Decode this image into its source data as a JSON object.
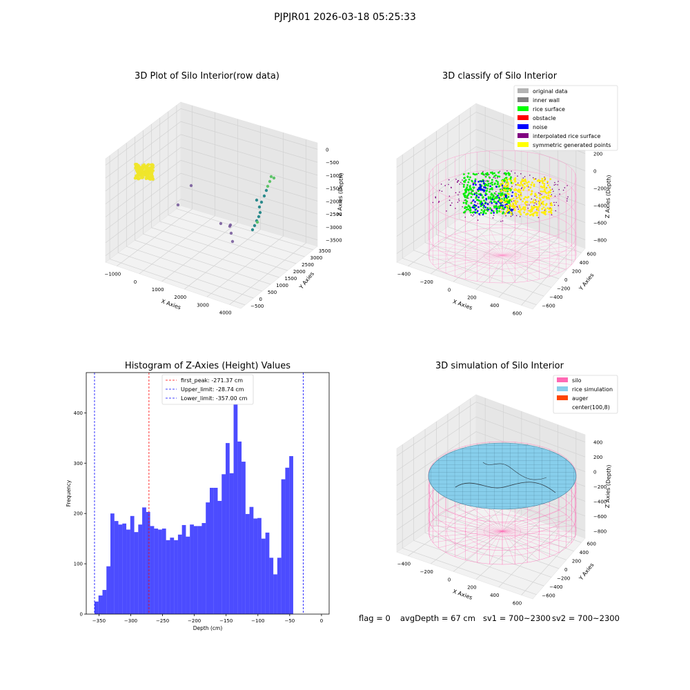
{
  "header": {
    "title": "PJPJR01 2026-03-18 05:25:33"
  },
  "panels": {
    "raw": {
      "title": "3D Plot of Silo Interior(row data)",
      "xlabel": "X Axies",
      "ylabel": "Y Axies",
      "zlabel": "Z Axies (Depth)",
      "xticks": [
        "−1000",
        "0",
        "1000",
        "2000",
        "3000",
        "4000"
      ],
      "yticks": [
        "−500",
        "0",
        "500",
        "1000",
        "1500",
        "2000",
        "2500",
        "3000",
        "3500"
      ],
      "zticks": [
        "0",
        "−500",
        "−1000",
        "−1500",
        "−2000",
        "−2500",
        "−3000",
        "−3500"
      ]
    },
    "classify": {
      "title": "3D classify of Silo Interior",
      "xlabel": "X Axies",
      "ylabel": "Y Axies",
      "zlabel": "Z Axies (Depth)",
      "xticks": [
        "−400",
        "−200",
        "0",
        "200",
        "400",
        "600"
      ],
      "yticks": [
        "−600",
        "−400",
        "−200",
        "0",
        "200",
        "400",
        "600"
      ],
      "zticks": [
        "200",
        "0",
        "−200",
        "−400",
        "−600",
        "−800"
      ],
      "legend": [
        {
          "label": "original data",
          "color": "#b3b3b3"
        },
        {
          "label": "inner wall",
          "color": "#808080"
        },
        {
          "label": "rice surface",
          "color": "#00ff00"
        },
        {
          "label": "obstacle",
          "color": "#ff0000"
        },
        {
          "label": "noise",
          "color": "#0000ff"
        },
        {
          "label": "interpolated rice surface",
          "color": "#800080"
        },
        {
          "label": "symmetric generated points",
          "color": "#ffff00"
        }
      ]
    },
    "simulation": {
      "title": "3D simulation of Silo Interior",
      "xlabel": "X Axies",
      "ylabel": "Y Axies",
      "zlabel": "Z Axies (Depth)",
      "xticks": [
        "−400",
        "−200",
        "0",
        "200",
        "400",
        "600"
      ],
      "yticks": [
        "−600",
        "−400",
        "−200",
        "0",
        "200",
        "400",
        "600"
      ],
      "zticks": [
        "400",
        "200",
        "0",
        "−200",
        "−400",
        "−600",
        "−800"
      ],
      "legend": [
        {
          "label": "silo",
          "color": "#ff69b4"
        },
        {
          "label": "rice simulation",
          "color": "#87ceeb"
        },
        {
          "label": "auger",
          "color": "#ff4500"
        },
        {
          "label": "center(100,8)",
          "color": ""
        }
      ]
    }
  },
  "chart_data": {
    "type": "bar",
    "title": "Histogram of Z-Axies (Height) Values",
    "xlabel": "Depth (cm)",
    "ylabel": "Frequency",
    "xlim": [
      -370,
      12
    ],
    "ylim": [
      0,
      480
    ],
    "xticks": [
      -350,
      -300,
      -250,
      -200,
      -150,
      -100,
      -50,
      0
    ],
    "yticks": [
      0,
      100,
      200,
      300,
      400
    ],
    "bin_start": -357,
    "bin_width": 6.25,
    "values": [
      25,
      37,
      48,
      95,
      200,
      185,
      178,
      180,
      168,
      195,
      163,
      178,
      212,
      203,
      175,
      170,
      168,
      170,
      147,
      152,
      147,
      158,
      177,
      154,
      178,
      175,
      175,
      181,
      222,
      251,
      251,
      225,
      278,
      340,
      280,
      460,
      343,
      303,
      199,
      213,
      190,
      191,
      150,
      162,
      112,
      79,
      112,
      268,
      291,
      314
    ],
    "bar_color": "#0000ff",
    "vlines": [
      {
        "label": "first_peak: -271.37 cm",
        "x": -271.37,
        "color": "#ff0000"
      },
      {
        "label": "Upper_limit: -28.74 cm",
        "x": -28.74,
        "color": "#0000ff"
      },
      {
        "label": "Lower_limit: -357.00 cm",
        "x": -357.0,
        "color": "#0000ff"
      }
    ],
    "legend_position": "upper-center"
  },
  "footer": {
    "flag": "flag = 0",
    "avg_depth": "avgDepth = 67 cm",
    "sv1": "sv1 = 700~2300",
    "sv2": "sv2 = 700~2300"
  }
}
